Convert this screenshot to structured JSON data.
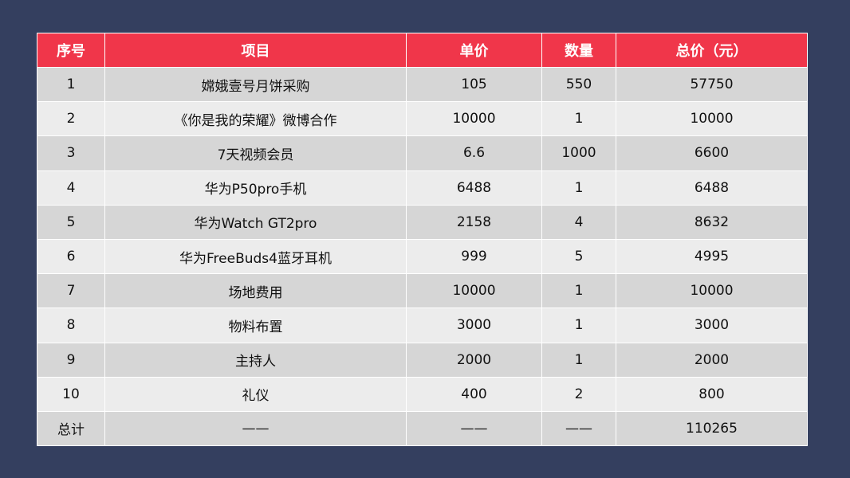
{
  "table": {
    "headers": [
      "序号",
      "项目",
      "单价",
      "数量",
      "总价（元）"
    ],
    "rows": [
      [
        "1",
        "嫦娥壹号月饼采购",
        "105",
        "550",
        "57750"
      ],
      [
        "2",
        "《你是我的荣耀》微博合作",
        "10000",
        "1",
        "10000"
      ],
      [
        "3",
        "7天视频会员",
        "6.6",
        "1000",
        "6600"
      ],
      [
        "4",
        "华为P50pro手机",
        "6488",
        "1",
        "6488"
      ],
      [
        "5",
        "华为Watch GT2pro",
        "2158",
        "4",
        "8632"
      ],
      [
        "6",
        "华为FreeBuds4蓝牙耳机",
        "999",
        "5",
        "4995"
      ],
      [
        "7",
        "场地费用",
        "10000",
        "1",
        "10000"
      ],
      [
        "8",
        "物料布置",
        "3000",
        "1",
        "3000"
      ],
      [
        "9",
        "主持人",
        "2000",
        "1",
        "2000"
      ],
      [
        "10",
        "礼仪",
        "400",
        "2",
        "800"
      ]
    ],
    "total_row": [
      "总计",
      "——",
      "——",
      "——",
      "110265"
    ]
  },
  "colors": {
    "background": "#343f5f",
    "header": "#f0364a",
    "row_dark": "#d6d6d6",
    "row_light": "#ececec"
  }
}
